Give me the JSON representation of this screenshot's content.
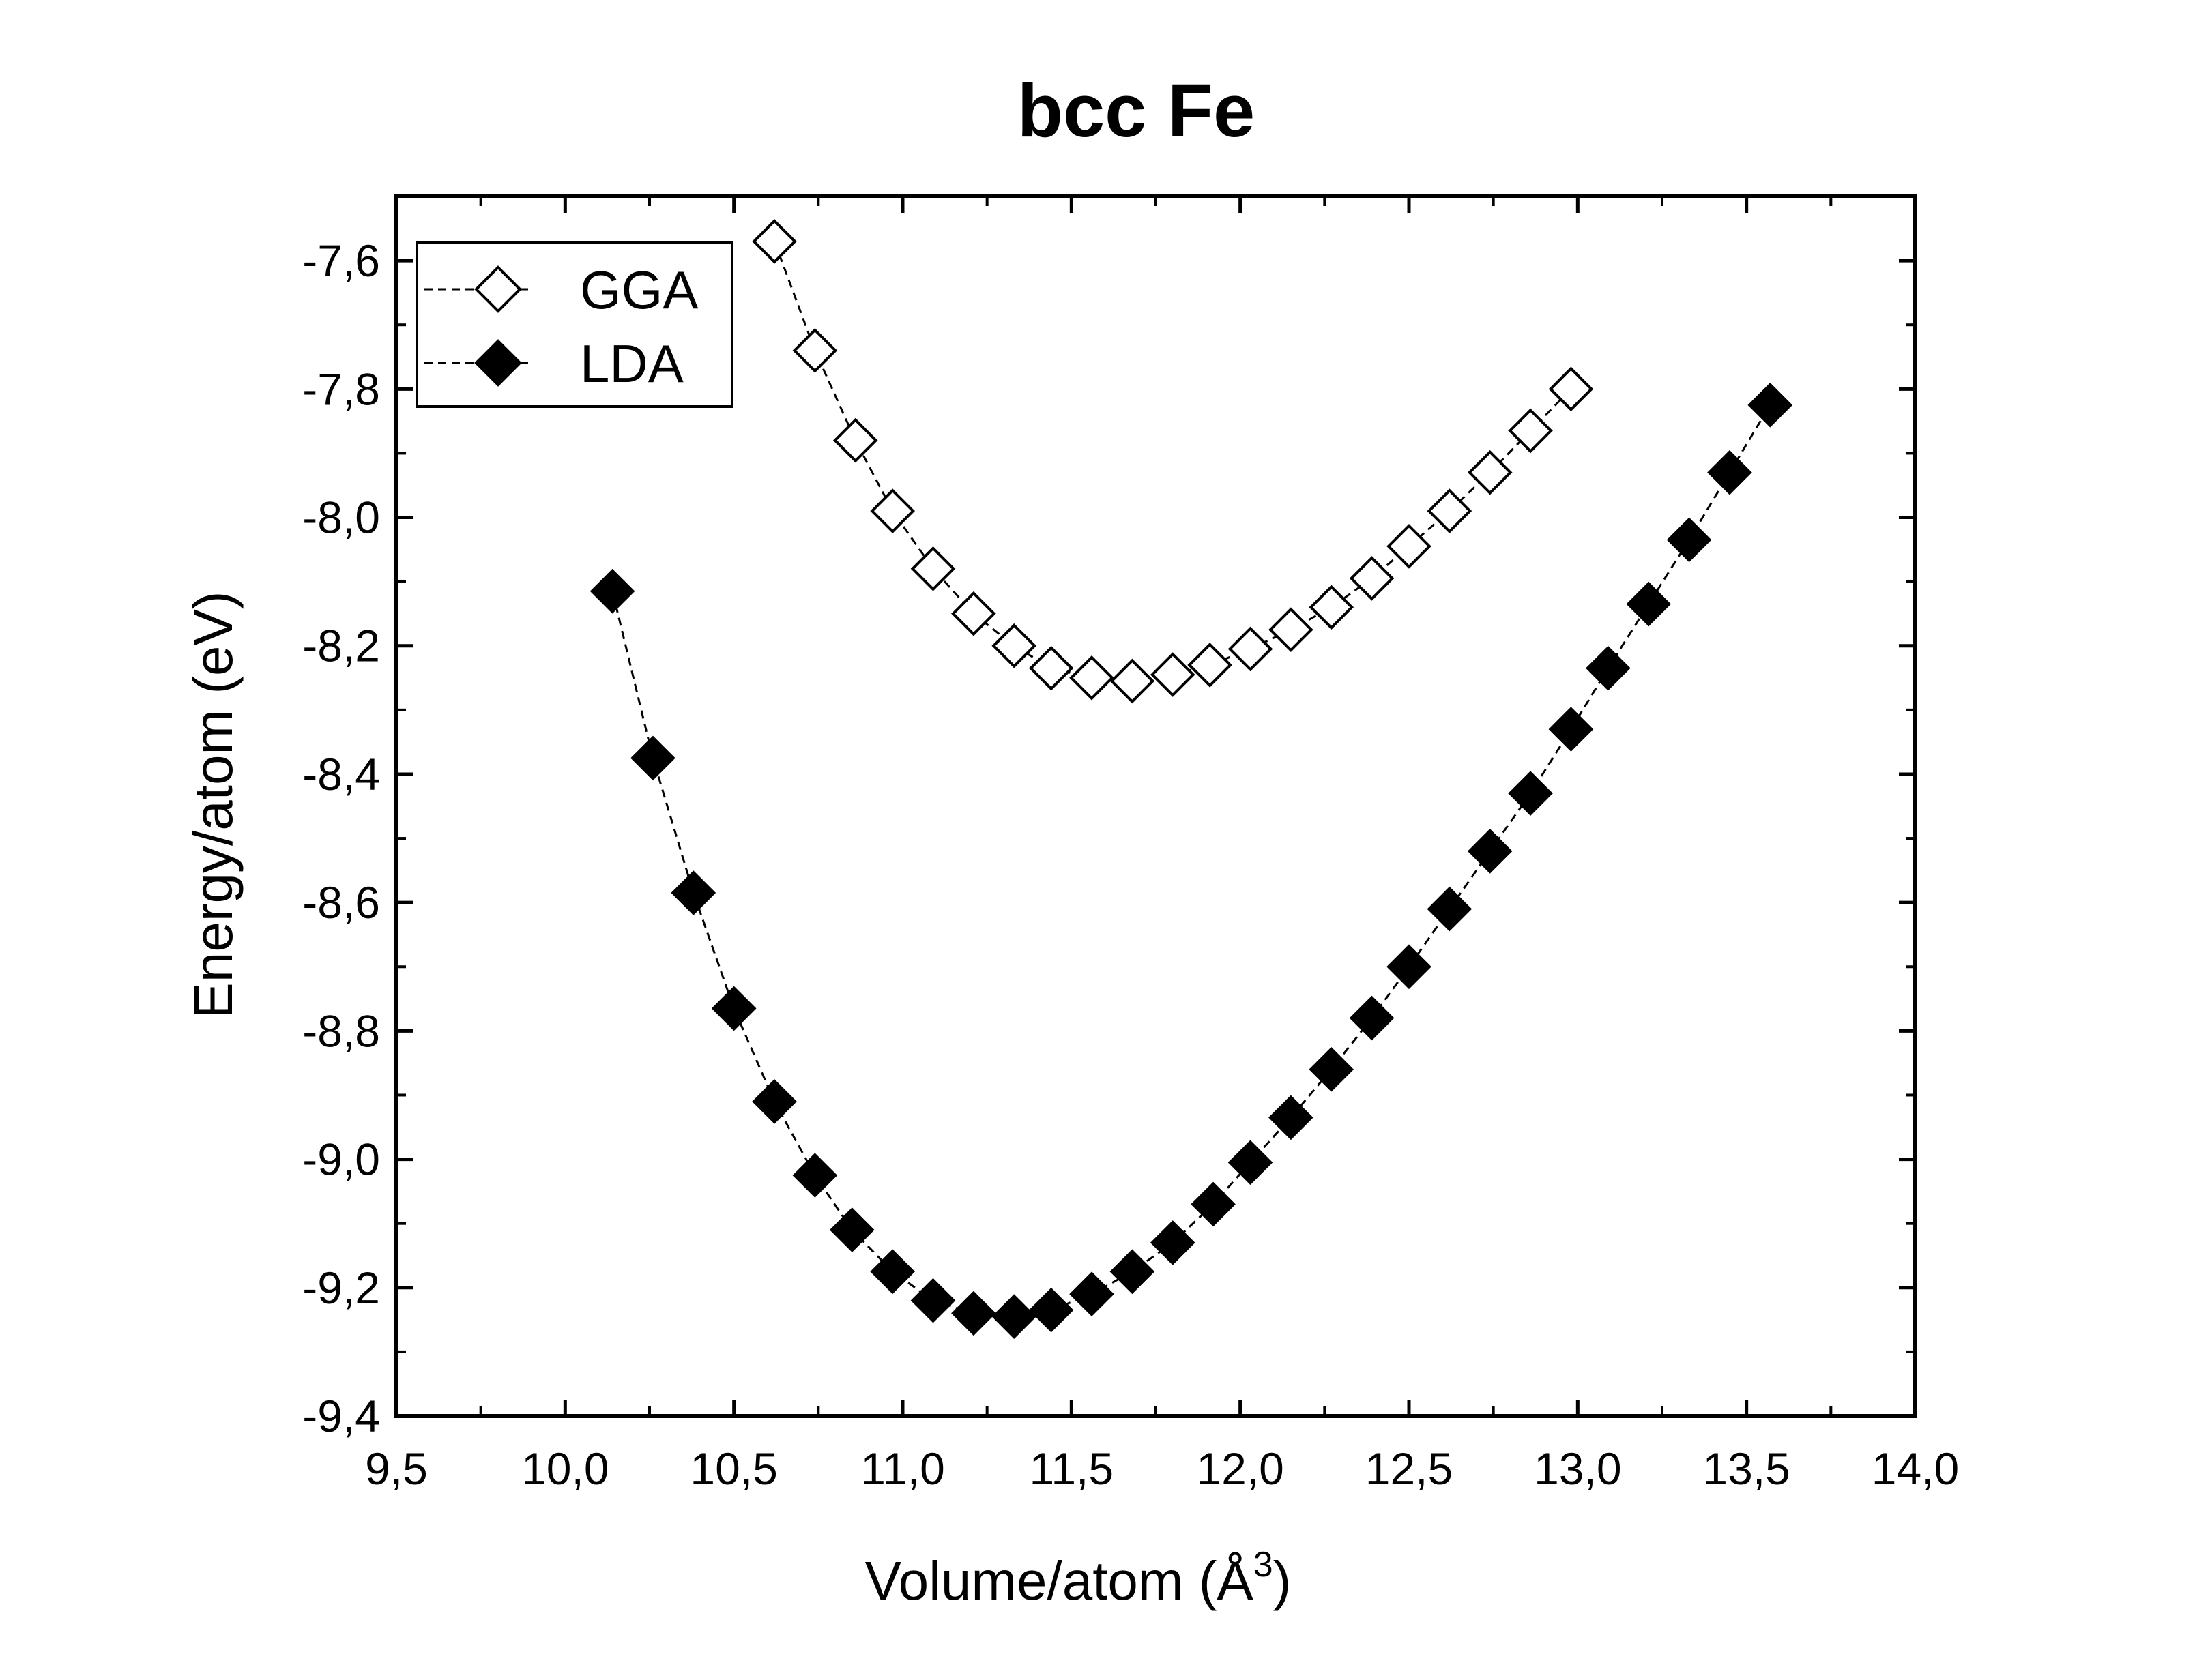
{
  "chart_data": {
    "type": "scatter",
    "title": "bcc Fe",
    "xlabel": "Volume/atom (Å",
    "xlabel_sup": "3",
    "xlabel_close": ")",
    "ylabel": "Energy/atom (eV)",
    "xlim": [
      9.5,
      14.0
    ],
    "ylim": [
      -9.4,
      -7.5
    ],
    "x_ticks": [
      "9,5",
      "10,0",
      "10,5",
      "11,0",
      "11,5",
      "12,0",
      "12,5",
      "13,0",
      "13,5",
      "14,0"
    ],
    "x_tick_values": [
      9.5,
      10.0,
      10.5,
      11.0,
      11.5,
      12.0,
      12.5,
      13.0,
      13.5,
      14.0
    ],
    "y_ticks": [
      "-7,6",
      "-7,8",
      "-8,0",
      "-8,2",
      "-8,4",
      "-8,6",
      "-8,8",
      "-9,0",
      "-9,2",
      "-9,4"
    ],
    "y_tick_values": [
      -7.6,
      -7.8,
      -8.0,
      -8.2,
      -8.4,
      -8.6,
      -8.8,
      -9.0,
      -9.2,
      -9.4
    ],
    "grid": false,
    "legend_position": "top-left",
    "series": [
      {
        "name": "GGA",
        "marker": "open-diamond",
        "line": "dashed",
        "color": "#000000",
        "x": [
          10.62,
          10.74,
          10.86,
          10.97,
          11.09,
          11.21,
          11.33,
          11.44,
          11.56,
          11.68,
          11.8,
          11.91,
          12.03,
          12.15,
          12.27,
          12.39,
          12.5,
          12.62,
          12.74,
          12.86,
          12.98
        ],
        "y": [
          -7.57,
          -7.74,
          -7.88,
          -7.99,
          -8.08,
          -8.15,
          -8.2,
          -8.235,
          -8.25,
          -8.255,
          -8.245,
          -8.23,
          -8.205,
          -8.175,
          -8.14,
          -8.095,
          -8.045,
          -7.99,
          -7.93,
          -7.865,
          -7.8
        ]
      },
      {
        "name": "LDA",
        "marker": "filled-diamond",
        "line": "dashed",
        "color": "#000000",
        "x": [
          10.14,
          10.26,
          10.38,
          10.5,
          10.62,
          10.74,
          10.85,
          10.97,
          11.09,
          11.21,
          11.33,
          11.44,
          11.56,
          11.68,
          11.8,
          11.92,
          12.03,
          12.15,
          12.27,
          12.39,
          12.5,
          12.62,
          12.74,
          12.86,
          12.98,
          13.09,
          13.21,
          13.33,
          13.45,
          13.57
        ],
        "y": [
          -8.115,
          -8.375,
          -8.585,
          -8.765,
          -8.91,
          -9.025,
          -9.11,
          -9.175,
          -9.22,
          -9.24,
          -9.245,
          -9.235,
          -9.21,
          -9.175,
          -9.13,
          -9.07,
          -9.005,
          -8.935,
          -8.86,
          -8.78,
          -8.7,
          -8.61,
          -8.52,
          -8.43,
          -8.33,
          -8.235,
          -8.135,
          -8.035,
          -7.93,
          -7.825
        ]
      }
    ]
  }
}
